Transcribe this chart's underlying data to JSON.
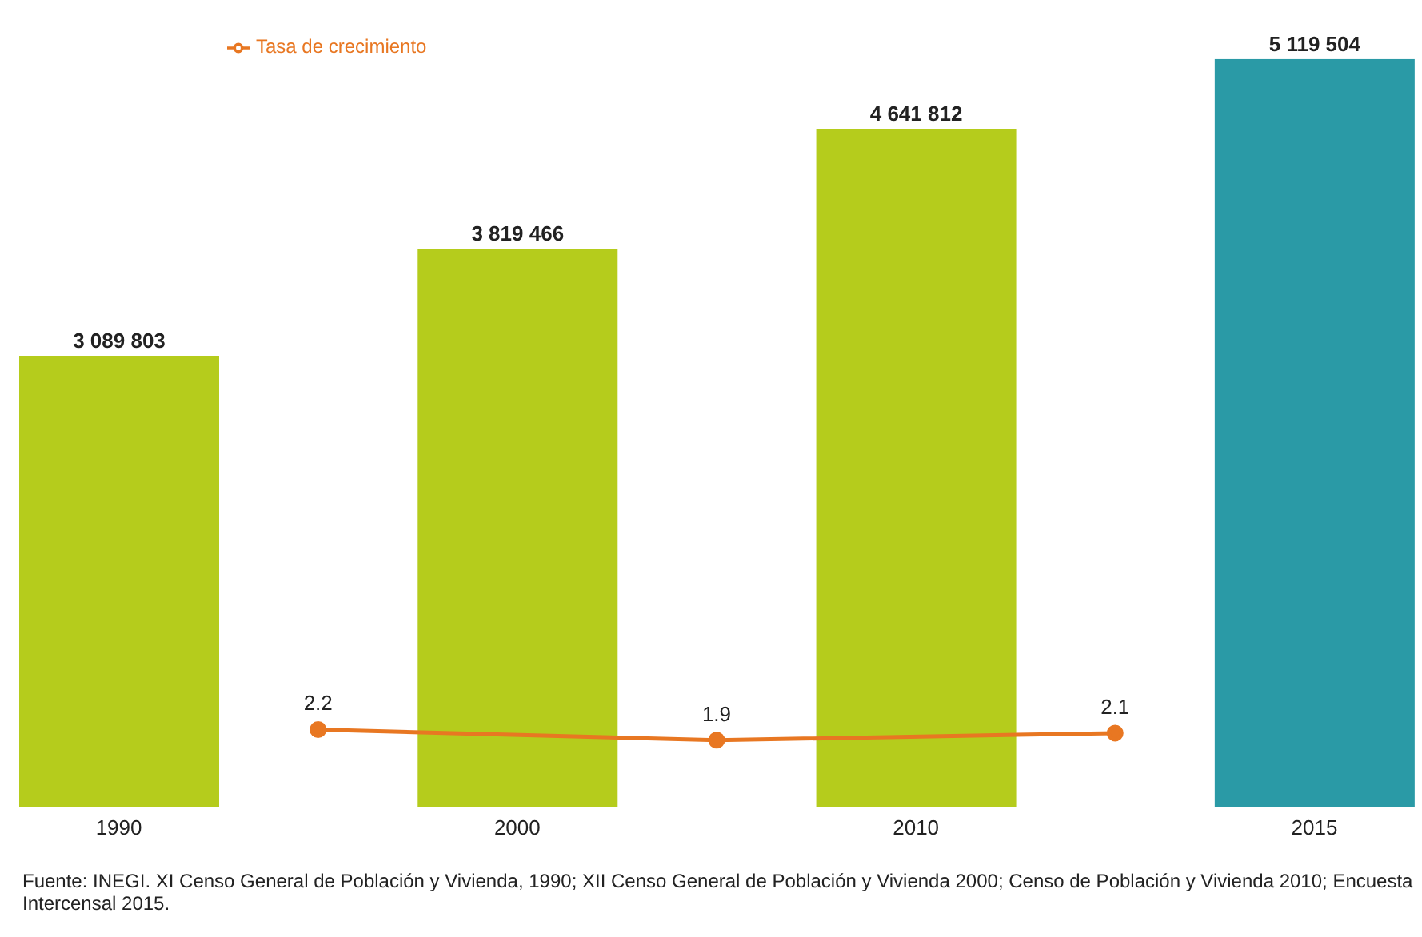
{
  "chart_data": {
    "type": "bar",
    "categories": [
      "1990",
      null,
      "2000",
      null,
      "2010",
      null,
      "2015"
    ],
    "series": [
      {
        "colors": [
          "#b5cc1c",
          null,
          "#b5cc1c",
          null,
          "#b5cc1c",
          null,
          "#2a9aa6"
        ],
        "values": [
          3089803,
          null,
          3819466,
          null,
          4641812,
          null,
          5119504
        ]
      },
      {
        "type": "line",
        "name": "Tasa de crecimiento",
        "color": "#e87722",
        "axis": "y2",
        "values": [
          null,
          2.2,
          null,
          1.9,
          null,
          2.1,
          null
        ]
      }
    ],
    "data_labels": true,
    "legend": "top left",
    "marker": "circle",
    "tick_labels": "x",
    "annotations": [
      "Fuente: INEGI. XI Censo General de Población y Vivienda, 1990; XII Censo General de Población y Vivienda 2000; Censo de Población y Vivienda 2010; Encuesta Intercensal 2015."
    ]
  }
}
